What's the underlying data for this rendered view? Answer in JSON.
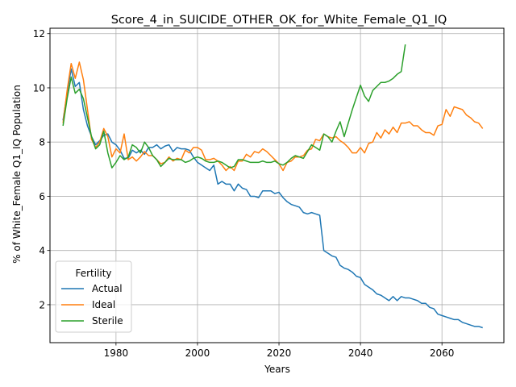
{
  "chart_data": {
    "type": "line",
    "title": "Score_4_in_SUICIDE_OTHER_OK_for_White_Female_Q1_IQ",
    "xlabel": "Years",
    "ylabel": "% of White_Female Q1_IQ Population",
    "xlim": [
      1963.8,
      2075.2
    ],
    "ylim": [
      0.6,
      12.2
    ],
    "xticks": [
      1980,
      2000,
      2020,
      2040,
      2060
    ],
    "yticks": [
      2,
      4,
      6,
      8,
      10,
      12
    ],
    "grid": true,
    "legend": {
      "title": "Fertility",
      "position": "lower-left"
    },
    "series": [
      {
        "name": "Actual",
        "color": "#1f77b4",
        "points": [
          [
            1967,
            8.8
          ],
          [
            1968,
            9.8
          ],
          [
            1969,
            10.7
          ],
          [
            1970,
            10.05
          ],
          [
            1971,
            10.2
          ],
          [
            1972,
            9.2
          ],
          [
            1973,
            8.6
          ],
          [
            1974,
            8.2
          ],
          [
            1975,
            7.9
          ],
          [
            1976,
            8.05
          ],
          [
            1977,
            8.25
          ],
          [
            1978,
            8.3
          ],
          [
            1979,
            8.0
          ],
          [
            1980,
            7.9
          ],
          [
            1981,
            7.7
          ],
          [
            1982,
            7.4
          ],
          [
            1983,
            7.4
          ],
          [
            1984,
            7.7
          ],
          [
            1985,
            7.6
          ],
          [
            1986,
            7.7
          ],
          [
            1987,
            7.55
          ],
          [
            1988,
            7.8
          ],
          [
            1989,
            7.8
          ],
          [
            1990,
            7.9
          ],
          [
            1991,
            7.75
          ],
          [
            1992,
            7.85
          ],
          [
            1993,
            7.9
          ],
          [
            1994,
            7.65
          ],
          [
            1995,
            7.8
          ],
          [
            1996,
            7.75
          ],
          [
            1997,
            7.75
          ],
          [
            1998,
            7.7
          ],
          [
            1999,
            7.45
          ],
          [
            2000,
            7.25
          ],
          [
            2001,
            7.15
          ],
          [
            2002,
            7.05
          ],
          [
            2003,
            6.95
          ],
          [
            2004,
            7.15
          ],
          [
            2005,
            6.45
          ],
          [
            2006,
            6.55
          ],
          [
            2007,
            6.45
          ],
          [
            2008,
            6.45
          ],
          [
            2009,
            6.2
          ],
          [
            2010,
            6.45
          ],
          [
            2011,
            6.3
          ],
          [
            2012,
            6.25
          ],
          [
            2013,
            6.0
          ],
          [
            2014,
            6.0
          ],
          [
            2015,
            5.95
          ],
          [
            2016,
            6.2
          ],
          [
            2017,
            6.2
          ],
          [
            2018,
            6.2
          ],
          [
            2019,
            6.1
          ],
          [
            2020,
            6.15
          ],
          [
            2021,
            5.95
          ],
          [
            2022,
            5.8
          ],
          [
            2023,
            5.7
          ],
          [
            2024,
            5.65
          ],
          [
            2025,
            5.6
          ],
          [
            2026,
            5.4
          ],
          [
            2027,
            5.35
          ],
          [
            2028,
            5.4
          ],
          [
            2029,
            5.35
          ],
          [
            2030,
            5.3
          ],
          [
            2031,
            4.0
          ],
          [
            2032,
            3.9
          ],
          [
            2033,
            3.8
          ],
          [
            2034,
            3.75
          ],
          [
            2035,
            3.45
          ],
          [
            2036,
            3.35
          ],
          [
            2037,
            3.3
          ],
          [
            2038,
            3.2
          ],
          [
            2039,
            3.05
          ],
          [
            2040,
            3.0
          ],
          [
            2041,
            2.75
          ],
          [
            2042,
            2.65
          ],
          [
            2043,
            2.55
          ],
          [
            2044,
            2.4
          ],
          [
            2045,
            2.35
          ],
          [
            2046,
            2.25
          ],
          [
            2047,
            2.15
          ],
          [
            2048,
            2.3
          ],
          [
            2049,
            2.15
          ],
          [
            2050,
            2.3
          ],
          [
            2051,
            2.25
          ],
          [
            2052,
            2.25
          ],
          [
            2053,
            2.2
          ],
          [
            2054,
            2.15
          ],
          [
            2055,
            2.05
          ],
          [
            2056,
            2.05
          ],
          [
            2057,
            1.9
          ],
          [
            2058,
            1.85
          ],
          [
            2059,
            1.65
          ],
          [
            2060,
            1.6
          ],
          [
            2061,
            1.55
          ],
          [
            2062,
            1.5
          ],
          [
            2063,
            1.45
          ],
          [
            2064,
            1.45
          ],
          [
            2065,
            1.35
          ],
          [
            2066,
            1.3
          ],
          [
            2067,
            1.25
          ],
          [
            2068,
            1.2
          ],
          [
            2069,
            1.2
          ],
          [
            2070,
            1.15
          ]
        ]
      },
      {
        "name": "Ideal",
        "color": "#ff7f0e",
        "points": [
          [
            1967,
            8.7
          ],
          [
            1968,
            9.9
          ],
          [
            1969,
            10.9
          ],
          [
            1970,
            10.35
          ],
          [
            1971,
            10.95
          ],
          [
            1972,
            10.3
          ],
          [
            1973,
            9.2
          ],
          [
            1974,
            8.1
          ],
          [
            1975,
            7.8
          ],
          [
            1976,
            8.0
          ],
          [
            1977,
            8.5
          ],
          [
            1978,
            8.2
          ],
          [
            1979,
            7.45
          ],
          [
            1980,
            7.75
          ],
          [
            1981,
            7.6
          ],
          [
            1982,
            8.3
          ],
          [
            1983,
            7.35
          ],
          [
            1984,
            7.45
          ],
          [
            1985,
            7.3
          ],
          [
            1986,
            7.45
          ],
          [
            1987,
            7.65
          ],
          [
            1988,
            7.5
          ],
          [
            1989,
            7.5
          ],
          [
            1990,
            7.35
          ],
          [
            1991,
            7.2
          ],
          [
            1992,
            7.25
          ],
          [
            1993,
            7.45
          ],
          [
            1994,
            7.3
          ],
          [
            1995,
            7.4
          ],
          [
            1996,
            7.35
          ],
          [
            1997,
            7.7
          ],
          [
            1998,
            7.6
          ],
          [
            1999,
            7.8
          ],
          [
            2000,
            7.8
          ],
          [
            2001,
            7.7
          ],
          [
            2002,
            7.35
          ],
          [
            2003,
            7.35
          ],
          [
            2004,
            7.4
          ],
          [
            2005,
            7.3
          ],
          [
            2006,
            7.15
          ],
          [
            2007,
            6.95
          ],
          [
            2008,
            7.1
          ],
          [
            2009,
            6.95
          ],
          [
            2010,
            7.3
          ],
          [
            2011,
            7.3
          ],
          [
            2012,
            7.55
          ],
          [
            2013,
            7.45
          ],
          [
            2014,
            7.65
          ],
          [
            2015,
            7.6
          ],
          [
            2016,
            7.75
          ],
          [
            2017,
            7.65
          ],
          [
            2018,
            7.5
          ],
          [
            2019,
            7.35
          ],
          [
            2020,
            7.2
          ],
          [
            2021,
            6.95
          ],
          [
            2022,
            7.25
          ],
          [
            2023,
            7.3
          ],
          [
            2024,
            7.45
          ],
          [
            2025,
            7.45
          ],
          [
            2026,
            7.5
          ],
          [
            2027,
            7.7
          ],
          [
            2028,
            7.75
          ],
          [
            2029,
            8.1
          ],
          [
            2030,
            8.05
          ],
          [
            2031,
            8.3
          ],
          [
            2032,
            8.2
          ],
          [
            2033,
            8.15
          ],
          [
            2034,
            8.2
          ],
          [
            2035,
            8.05
          ],
          [
            2036,
            7.95
          ],
          [
            2037,
            7.8
          ],
          [
            2038,
            7.6
          ],
          [
            2039,
            7.6
          ],
          [
            2040,
            7.8
          ],
          [
            2041,
            7.6
          ],
          [
            2042,
            7.95
          ],
          [
            2043,
            8.0
          ],
          [
            2044,
            8.35
          ],
          [
            2045,
            8.15
          ],
          [
            2046,
            8.45
          ],
          [
            2047,
            8.3
          ],
          [
            2048,
            8.55
          ],
          [
            2049,
            8.35
          ],
          [
            2050,
            8.7
          ],
          [
            2051,
            8.7
          ],
          [
            2052,
            8.75
          ],
          [
            2053,
            8.6
          ],
          [
            2054,
            8.6
          ],
          [
            2055,
            8.45
          ],
          [
            2056,
            8.35
          ],
          [
            2057,
            8.35
          ],
          [
            2058,
            8.25
          ],
          [
            2059,
            8.6
          ],
          [
            2060,
            8.65
          ],
          [
            2061,
            9.2
          ],
          [
            2062,
            8.95
          ],
          [
            2063,
            9.3
          ],
          [
            2064,
            9.25
          ],
          [
            2065,
            9.2
          ],
          [
            2066,
            9.0
          ],
          [
            2067,
            8.9
          ],
          [
            2068,
            8.75
          ],
          [
            2069,
            8.7
          ],
          [
            2070,
            8.5
          ]
        ]
      },
      {
        "name": "Sterile",
        "color": "#2ca02c",
        "points": [
          [
            1967,
            8.6
          ],
          [
            1968,
            9.6
          ],
          [
            1969,
            10.4
          ],
          [
            1970,
            9.8
          ],
          [
            1971,
            9.95
          ],
          [
            1972,
            9.6
          ],
          [
            1973,
            8.9
          ],
          [
            1974,
            8.2
          ],
          [
            1975,
            7.75
          ],
          [
            1976,
            7.9
          ],
          [
            1977,
            8.4
          ],
          [
            1978,
            7.6
          ],
          [
            1979,
            7.05
          ],
          [
            1980,
            7.25
          ],
          [
            1981,
            7.5
          ],
          [
            1982,
            7.35
          ],
          [
            1983,
            7.45
          ],
          [
            1984,
            7.9
          ],
          [
            1985,
            7.8
          ],
          [
            1986,
            7.6
          ],
          [
            1987,
            8.0
          ],
          [
            1988,
            7.8
          ],
          [
            1989,
            7.5
          ],
          [
            1990,
            7.35
          ],
          [
            1991,
            7.1
          ],
          [
            1992,
            7.25
          ],
          [
            1993,
            7.4
          ],
          [
            1994,
            7.35
          ],
          [
            1995,
            7.35
          ],
          [
            1996,
            7.35
          ],
          [
            1997,
            7.25
          ],
          [
            1998,
            7.3
          ],
          [
            1999,
            7.4
          ],
          [
            2000,
            7.45
          ],
          [
            2001,
            7.4
          ],
          [
            2002,
            7.3
          ],
          [
            2003,
            7.25
          ],
          [
            2004,
            7.25
          ],
          [
            2005,
            7.3
          ],
          [
            2006,
            7.25
          ],
          [
            2007,
            7.15
          ],
          [
            2008,
            7.05
          ],
          [
            2009,
            7.1
          ],
          [
            2010,
            7.35
          ],
          [
            2011,
            7.35
          ],
          [
            2012,
            7.3
          ],
          [
            2013,
            7.25
          ],
          [
            2014,
            7.25
          ],
          [
            2015,
            7.25
          ],
          [
            2016,
            7.3
          ],
          [
            2017,
            7.25
          ],
          [
            2018,
            7.25
          ],
          [
            2019,
            7.3
          ],
          [
            2020,
            7.2
          ],
          [
            2021,
            7.15
          ],
          [
            2022,
            7.25
          ],
          [
            2023,
            7.4
          ],
          [
            2024,
            7.5
          ],
          [
            2025,
            7.45
          ],
          [
            2026,
            7.4
          ],
          [
            2027,
            7.65
          ],
          [
            2028,
            7.9
          ],
          [
            2029,
            7.8
          ],
          [
            2030,
            7.7
          ],
          [
            2031,
            8.3
          ],
          [
            2032,
            8.2
          ],
          [
            2033,
            8.0
          ],
          [
            2034,
            8.4
          ],
          [
            2035,
            8.75
          ],
          [
            2036,
            8.2
          ],
          [
            2037,
            8.7
          ],
          [
            2038,
            9.2
          ],
          [
            2039,
            9.65
          ],
          [
            2040,
            10.1
          ],
          [
            2041,
            9.7
          ],
          [
            2042,
            9.5
          ],
          [
            2043,
            9.9
          ],
          [
            2044,
            10.05
          ],
          [
            2045,
            10.2
          ],
          [
            2046,
            10.2
          ],
          [
            2047,
            10.25
          ],
          [
            2048,
            10.35
          ],
          [
            2049,
            10.5
          ],
          [
            2050,
            10.6
          ],
          [
            2051,
            11.6
          ]
        ]
      }
    ]
  }
}
